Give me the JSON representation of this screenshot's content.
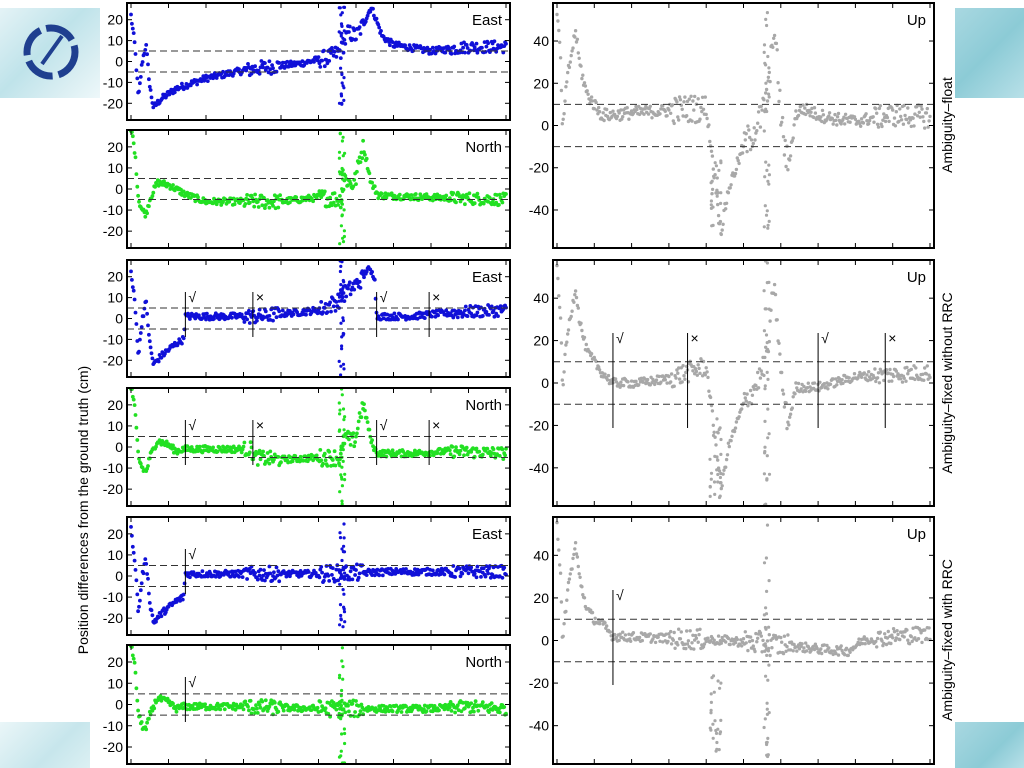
{
  "slide": {
    "background": "#ffffff",
    "decor_colors": [
      "#bfe3ea",
      "#8ccbd6"
    ],
    "logo_icon": "circular-compass-logo-icon"
  },
  "chart_data": {
    "type": "scatter",
    "ylabel": "Position differences from the ground truth (cm)",
    "threshold_lines": {
      "horizontal": [
        -5,
        5
      ],
      "vertical": [
        -10,
        10
      ],
      "style": "dashed"
    },
    "row_labels": [
      "Ambiguity–float",
      "Ambiguity–fixed without RRC",
      "Ambiguity–fixed with RRC"
    ],
    "marks": {
      "ok": "√",
      "fail": "×"
    },
    "series_colors": {
      "East": "#1010d8",
      "North": "#22e022",
      "Up": "#a8a8a8"
    },
    "x_range": [
      0,
      100
    ],
    "panels": [
      {
        "group": 0,
        "component": "East",
        "ylim": [
          -28,
          28
        ],
        "yticks": [
          -20,
          -10,
          0,
          10,
          20
        ],
        "mode": "float",
        "key": [
          [
            0,
            22
          ],
          [
            1,
            8
          ],
          [
            2,
            -18
          ],
          [
            3,
            0
          ],
          [
            4,
            8
          ],
          [
            5,
            -12
          ],
          [
            6,
            -22
          ],
          [
            8,
            -18
          ],
          [
            12,
            -13
          ],
          [
            20,
            -8
          ],
          [
            28,
            -5
          ],
          [
            35,
            -3
          ],
          [
            45,
            -1
          ],
          [
            53,
            2
          ],
          [
            56,
            5
          ],
          [
            58,
            14
          ],
          [
            60,
            12
          ],
          [
            62,
            18
          ],
          [
            63,
            22
          ],
          [
            64,
            26
          ],
          [
            65,
            22
          ],
          [
            67,
            12
          ],
          [
            70,
            8
          ],
          [
            80,
            5
          ],
          [
            90,
            7
          ],
          [
            100,
            7
          ]
        ],
        "marks": []
      },
      {
        "group": 0,
        "component": "North",
        "ylim": [
          -28,
          28
        ],
        "yticks": [
          -20,
          -10,
          0,
          10,
          20
        ],
        "mode": "float",
        "key": [
          [
            0,
            30
          ],
          [
            1,
            18
          ],
          [
            2,
            -5
          ],
          [
            3,
            -10
          ],
          [
            4,
            -12
          ],
          [
            5,
            -5
          ],
          [
            7,
            3
          ],
          [
            10,
            2
          ],
          [
            15,
            -3
          ],
          [
            20,
            -6
          ],
          [
            30,
            -6
          ],
          [
            40,
            -6
          ],
          [
            50,
            -4
          ],
          [
            56,
            -5
          ],
          [
            57,
            5
          ],
          [
            59,
            2
          ],
          [
            60,
            5
          ],
          [
            61,
            15
          ],
          [
            62,
            20
          ],
          [
            63,
            12
          ],
          [
            64,
            3
          ],
          [
            66,
            -3
          ],
          [
            80,
            -4
          ],
          [
            100,
            -5
          ]
        ],
        "marks": []
      },
      {
        "group": 1,
        "component": "East",
        "ylim": [
          -28,
          28
        ],
        "yticks": [
          -20,
          -10,
          0,
          10,
          20
        ],
        "mode": "fixed",
        "key": [
          [
            0,
            22
          ],
          [
            1,
            8
          ],
          [
            2,
            -18
          ],
          [
            3,
            0
          ],
          [
            4,
            8
          ],
          [
            5,
            -12
          ],
          [
            6,
            -22
          ],
          [
            8,
            -18
          ],
          [
            12,
            -12
          ],
          [
            14,
            -10
          ],
          [
            14.5,
            1
          ],
          [
            20,
            1
          ],
          [
            30,
            1
          ],
          [
            35,
            1
          ],
          [
            38,
            2
          ],
          [
            45,
            3
          ],
          [
            50,
            4
          ],
          [
            55,
            8
          ],
          [
            57,
            12
          ],
          [
            60,
            16
          ],
          [
            62,
            20
          ],
          [
            63,
            24
          ],
          [
            64,
            22
          ],
          [
            65,
            20
          ],
          [
            65.5,
            1
          ],
          [
            75,
            1
          ],
          [
            80,
            2
          ],
          [
            88,
            3
          ],
          [
            100,
            4
          ]
        ],
        "marks": [
          [
            14.5,
            "ok"
          ],
          [
            32.5,
            "fail"
          ],
          [
            65.5,
            "ok"
          ],
          [
            79.5,
            "fail"
          ]
        ]
      },
      {
        "group": 1,
        "component": "North",
        "ylim": [
          -28,
          28
        ],
        "yticks": [
          -20,
          -10,
          0,
          10,
          20
        ],
        "mode": "fixed",
        "key": [
          [
            0,
            30
          ],
          [
            1,
            18
          ],
          [
            2,
            -5
          ],
          [
            3,
            -10
          ],
          [
            4,
            -12
          ],
          [
            5,
            -5
          ],
          [
            7,
            3
          ],
          [
            10,
            1
          ],
          [
            12,
            -2
          ],
          [
            14,
            -1
          ],
          [
            14.5,
            -1
          ],
          [
            25,
            -1
          ],
          [
            32,
            -1
          ],
          [
            33,
            -5
          ],
          [
            40,
            -6
          ],
          [
            50,
            -5
          ],
          [
            56,
            -5
          ],
          [
            57,
            5
          ],
          [
            59,
            2
          ],
          [
            60,
            5
          ],
          [
            61,
            15
          ],
          [
            62,
            20
          ],
          [
            63,
            12
          ],
          [
            64,
            3
          ],
          [
            65.5,
            -3
          ],
          [
            75,
            -3
          ],
          [
            85,
            -2
          ],
          [
            100,
            -3
          ]
        ],
        "marks": [
          [
            14.5,
            "ok"
          ],
          [
            32.5,
            "fail"
          ],
          [
            65.5,
            "ok"
          ],
          [
            79.5,
            "fail"
          ]
        ]
      },
      {
        "group": 2,
        "component": "East",
        "ylim": [
          -28,
          28
        ],
        "yticks": [
          -20,
          -10,
          0,
          10,
          20
        ],
        "mode": "fixed",
        "key": [
          [
            0,
            22
          ],
          [
            1,
            8
          ],
          [
            2,
            -18
          ],
          [
            3,
            0
          ],
          [
            4,
            8
          ],
          [
            5,
            -12
          ],
          [
            6,
            -22
          ],
          [
            8,
            -18
          ],
          [
            12,
            -12
          ],
          [
            14,
            -10
          ],
          [
            14.5,
            1
          ],
          [
            30,
            1
          ],
          [
            50,
            1
          ],
          [
            70,
            2
          ],
          [
            80,
            2
          ],
          [
            90,
            2
          ],
          [
            100,
            2
          ]
        ],
        "marks": [
          [
            14.5,
            "ok"
          ]
        ]
      },
      {
        "group": 2,
        "component": "North",
        "ylim": [
          -28,
          28
        ],
        "yticks": [
          -20,
          -10,
          0,
          10,
          20
        ],
        "mode": "fixed",
        "key": [
          [
            0,
            30
          ],
          [
            1,
            18
          ],
          [
            2,
            -5
          ],
          [
            3,
            -10
          ],
          [
            4,
            -12
          ],
          [
            5,
            -5
          ],
          [
            7,
            3
          ],
          [
            10,
            1
          ],
          [
            12,
            -2
          ],
          [
            14,
            -1
          ],
          [
            14.5,
            -1
          ],
          [
            30,
            -1
          ],
          [
            50,
            -2
          ],
          [
            70,
            -2
          ],
          [
            80,
            -2
          ],
          [
            90,
            -1
          ],
          [
            100,
            -2
          ]
        ],
        "marks": [
          [
            14.5,
            "ok"
          ]
        ]
      },
      {
        "group": 0,
        "component": "Up",
        "ylim": [
          -58,
          58
        ],
        "yticks": [
          -40,
          -20,
          0,
          20,
          40
        ],
        "mode": "float",
        "key": [
          [
            0,
            55
          ],
          [
            1,
            30
          ],
          [
            1.5,
            -5
          ],
          [
            2,
            10
          ],
          [
            3,
            25
          ],
          [
            5,
            45
          ],
          [
            6,
            30
          ],
          [
            7,
            22
          ],
          [
            8,
            15
          ],
          [
            10,
            10
          ],
          [
            12,
            5
          ],
          [
            15,
            5
          ],
          [
            20,
            6
          ],
          [
            30,
            7
          ],
          [
            35,
            8
          ],
          [
            40,
            8
          ],
          [
            42,
            -20
          ],
          [
            44,
            -50
          ],
          [
            46,
            -30
          ],
          [
            48,
            -20
          ],
          [
            50,
            -10
          ],
          [
            52,
            -5
          ],
          [
            55,
            5
          ],
          [
            57,
            20
          ],
          [
            58,
            48
          ],
          [
            59,
            30
          ],
          [
            60,
            5
          ],
          [
            61,
            -10
          ],
          [
            62,
            -20
          ],
          [
            64,
            5
          ],
          [
            66,
            8
          ],
          [
            70,
            5
          ],
          [
            75,
            3
          ],
          [
            80,
            2
          ],
          [
            90,
            5
          ],
          [
            100,
            4
          ]
        ],
        "marks": []
      },
      {
        "group": 1,
        "component": "Up",
        "ylim": [
          -58,
          58
        ],
        "yticks": [
          -40,
          -20,
          0,
          20,
          40
        ],
        "mode": "fixed",
        "key": [
          [
            0,
            55
          ],
          [
            1,
            30
          ],
          [
            1.5,
            -5
          ],
          [
            2,
            10
          ],
          [
            3,
            25
          ],
          [
            5,
            45
          ],
          [
            6,
            30
          ],
          [
            7,
            22
          ],
          [
            8,
            15
          ],
          [
            10,
            10
          ],
          [
            12,
            5
          ],
          [
            15,
            0
          ],
          [
            22,
            0
          ],
          [
            30,
            2
          ],
          [
            35,
            5
          ],
          [
            40,
            8
          ],
          [
            42,
            -20
          ],
          [
            44,
            -50
          ],
          [
            46,
            -30
          ],
          [
            48,
            -20
          ],
          [
            50,
            -10
          ],
          [
            52,
            -5
          ],
          [
            55,
            5
          ],
          [
            57,
            20
          ],
          [
            58,
            48
          ],
          [
            59,
            30
          ],
          [
            60,
            5
          ],
          [
            61,
            -10
          ],
          [
            62,
            -20
          ],
          [
            64,
            -2
          ],
          [
            70,
            -2
          ],
          [
            80,
            3
          ],
          [
            90,
            4
          ],
          [
            100,
            5
          ]
        ],
        "marks": [
          [
            15,
            "ok"
          ],
          [
            35,
            "fail"
          ],
          [
            70,
            "ok"
          ],
          [
            88,
            "fail"
          ]
        ]
      },
      {
        "group": 2,
        "component": "Up",
        "ylim": [
          -58,
          58
        ],
        "yticks": [
          -40,
          -20,
          0,
          20,
          40
        ],
        "mode": "fixed",
        "key": [
          [
            0,
            55
          ],
          [
            1,
            30
          ],
          [
            1.5,
            -5
          ],
          [
            2,
            10
          ],
          [
            3,
            25
          ],
          [
            5,
            45
          ],
          [
            6,
            30
          ],
          [
            7,
            22
          ],
          [
            8,
            15
          ],
          [
            10,
            10
          ],
          [
            12,
            8
          ],
          [
            15,
            2
          ],
          [
            30,
            1
          ],
          [
            45,
            0
          ],
          [
            60,
            -2
          ],
          [
            70,
            -4
          ],
          [
            78,
            -5
          ],
          [
            82,
            0
          ],
          [
            90,
            2
          ],
          [
            100,
            3
          ]
        ],
        "marks": [
          [
            15,
            "ok"
          ]
        ]
      }
    ]
  }
}
